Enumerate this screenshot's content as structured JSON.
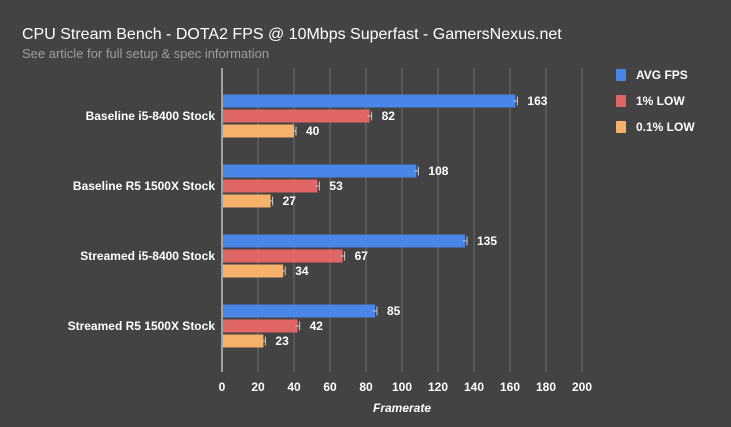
{
  "chart_data": {
    "type": "bar",
    "orientation": "horizontal",
    "title": "CPU Stream Bench - DOTA2 FPS @ 10Mbps Superfast - GamersNexus.net",
    "subtitle": "See article for full setup & spec information",
    "xlabel": "Framerate",
    "xlim": [
      0,
      200
    ],
    "xticks": [
      0,
      20,
      40,
      60,
      80,
      100,
      120,
      140,
      160,
      180,
      200
    ],
    "grid": true,
    "legend_position": "right",
    "categories": [
      "Baseline i5-8400 Stock",
      "Baseline R5 1500X Stock",
      "Streamed i5-8400 Stock",
      "Streamed R5 1500X Stock"
    ],
    "series": [
      {
        "name": "AVG FPS",
        "color": "#4a86e8",
        "values": [
          163,
          108,
          135,
          85
        ]
      },
      {
        "name": "1% LOW",
        "color": "#e06666",
        "values": [
          82,
          53,
          67,
          42
        ]
      },
      {
        "name": "0.1% LOW",
        "color": "#f6b26b",
        "values": [
          40,
          27,
          34,
          23
        ]
      }
    ]
  }
}
